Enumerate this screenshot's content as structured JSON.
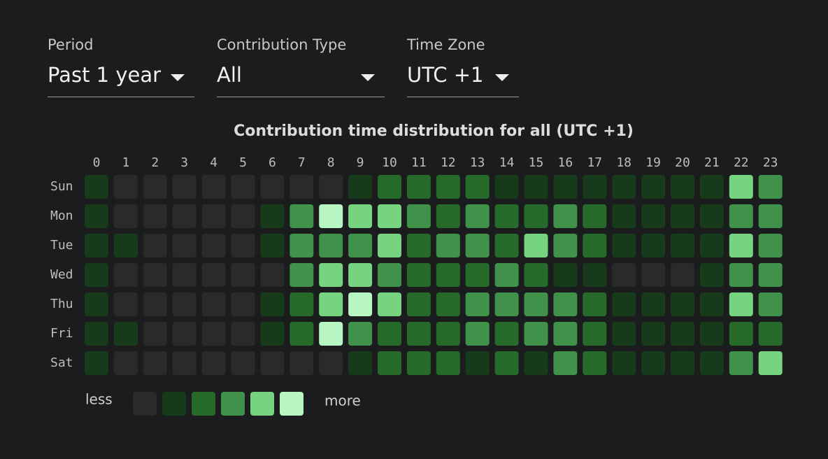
{
  "controls": [
    {
      "label": "Period",
      "value": "Past 1 year"
    },
    {
      "label": "Contribution Type",
      "value": "All"
    },
    {
      "label": "Time Zone",
      "value": "UTC +1"
    }
  ],
  "chart_data": {
    "type": "heatmap",
    "title": "Contribution time distribution for all (UTC +1)",
    "x": [
      0,
      1,
      2,
      3,
      4,
      5,
      6,
      7,
      8,
      9,
      10,
      11,
      12,
      13,
      14,
      15,
      16,
      17,
      18,
      19,
      20,
      21,
      22,
      23
    ],
    "categories": [
      "Sun",
      "Mon",
      "Tue",
      "Wed",
      "Thu",
      "Fri",
      "Sat"
    ],
    "values": [
      [
        1,
        0,
        0,
        0,
        0,
        0,
        0,
        0,
        0,
        1,
        2,
        2,
        2,
        2,
        1,
        1,
        1,
        1,
        1,
        1,
        1,
        1,
        4,
        3
      ],
      [
        1,
        0,
        0,
        0,
        0,
        0,
        1,
        3,
        5,
        4,
        4,
        3,
        2,
        3,
        2,
        2,
        3,
        2,
        1,
        1,
        1,
        1,
        3,
        3
      ],
      [
        1,
        1,
        0,
        0,
        0,
        0,
        1,
        3,
        3,
        3,
        4,
        2,
        3,
        3,
        2,
        4,
        3,
        2,
        1,
        1,
        1,
        1,
        4,
        3
      ],
      [
        1,
        0,
        0,
        0,
        0,
        0,
        0,
        3,
        4,
        4,
        3,
        2,
        2,
        2,
        3,
        2,
        1,
        1,
        0,
        0,
        0,
        1,
        3,
        3
      ],
      [
        1,
        0,
        0,
        0,
        0,
        0,
        1,
        2,
        4,
        5,
        4,
        2,
        2,
        3,
        3,
        3,
        3,
        2,
        1,
        1,
        1,
        1,
        4,
        3
      ],
      [
        1,
        1,
        0,
        0,
        0,
        0,
        1,
        2,
        5,
        3,
        2,
        2,
        2,
        3,
        2,
        3,
        3,
        2,
        1,
        1,
        1,
        1,
        2,
        2
      ],
      [
        1,
        0,
        0,
        0,
        0,
        0,
        0,
        0,
        0,
        1,
        2,
        2,
        2,
        1,
        2,
        1,
        3,
        2,
        1,
        1,
        1,
        1,
        3,
        4
      ]
    ],
    "colors": [
      "#2a2a2b",
      "#173b1a",
      "#266b2a",
      "#40914a",
      "#76d481",
      "#b7f5c3"
    ],
    "legend_less": "less",
    "legend_more": "more"
  }
}
